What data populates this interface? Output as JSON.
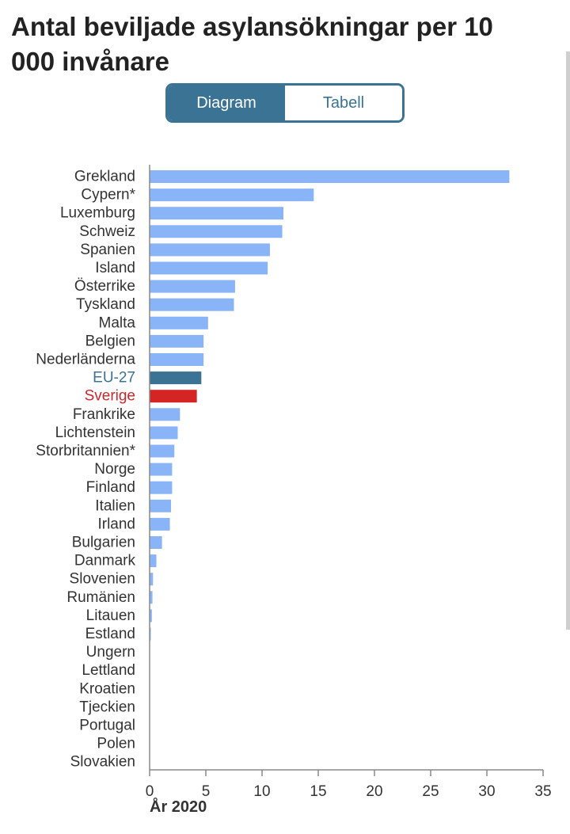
{
  "title": "Antal beviljade asylansökningar per 10 000 invånare",
  "toggle": {
    "diagram_label": "Diagram",
    "table_label": "Tabell",
    "active": "Diagram"
  },
  "colors": {
    "default_bar": "#8ab4f8",
    "eu_bar": "#3a7394",
    "sweden_bar": "#d42424",
    "eu_label": "#3a7394",
    "sweden_label": "#c8282d",
    "default_label": "#333333",
    "axis": "#888888"
  },
  "chart_data": {
    "type": "bar",
    "orientation": "horizontal",
    "title": "Antal beviljade asylansökningar per 10 000 invånare",
    "xlabel": "År 2020",
    "xlim": [
      0,
      35
    ],
    "xticks": [
      0,
      5,
      10,
      15,
      20,
      25,
      30,
      35
    ],
    "grid": false,
    "categories": [
      "Grekland",
      "Cypern*",
      "Luxemburg",
      "Schweiz",
      "Spanien",
      "Island",
      "Österrike",
      "Tyskland",
      "Malta",
      "Belgien",
      "Nederländerna",
      "EU-27",
      "Sverige",
      "Frankrike",
      "Lichtenstein",
      "Storbritannien*",
      "Norge",
      "Finland",
      "Italien",
      "Irland",
      "Bulgarien",
      "Danmark",
      "Slovenien",
      "Rumänien",
      "Litauen",
      "Estland",
      "Ungern",
      "Lettland",
      "Kroatien",
      "Tjeckien",
      "Portugal",
      "Polen",
      "Slovakien"
    ],
    "values": [
      32.0,
      14.6,
      11.9,
      11.8,
      10.7,
      10.5,
      7.6,
      7.5,
      5.2,
      4.8,
      4.8,
      4.6,
      4.2,
      2.7,
      2.5,
      2.2,
      2.0,
      2.0,
      1.9,
      1.8,
      1.1,
      0.6,
      0.3,
      0.25,
      0.2,
      0.1,
      0.0,
      0.0,
      0.0,
      0.0,
      0.0,
      0.0,
      0.0
    ],
    "highlight": {
      "EU-27": "eu",
      "Sverige": "sweden"
    }
  }
}
